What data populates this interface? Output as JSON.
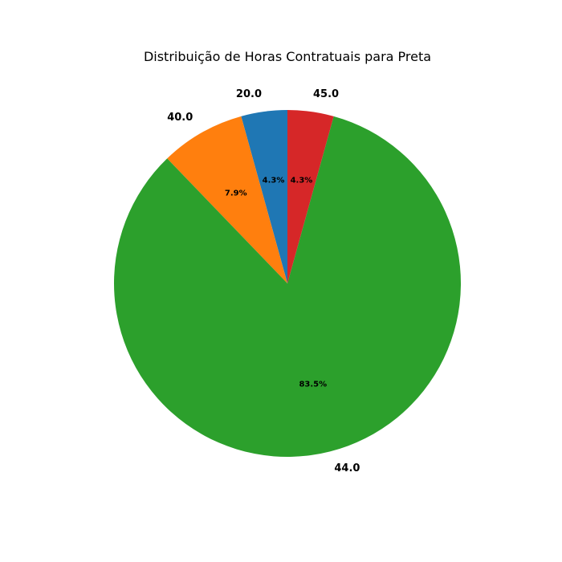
{
  "chart_data": {
    "type": "pie",
    "title": "Distribuição de Horas Contratuais para Preta",
    "start_angle_deg": 90,
    "direction": "counterclockwise",
    "slices": [
      {
        "label": "20.0",
        "value": 4.3,
        "pct_label": "4.3%",
        "color": "#1f77b4"
      },
      {
        "label": "40.0",
        "value": 7.9,
        "pct_label": "7.9%",
        "color": "#ff7f0e"
      },
      {
        "label": "44.0",
        "value": 83.5,
        "pct_label": "83.5%",
        "color": "#2ca02c"
      },
      {
        "label": "45.0",
        "value": 4.3,
        "pct_label": "4.3%",
        "color": "#d62728"
      }
    ]
  }
}
